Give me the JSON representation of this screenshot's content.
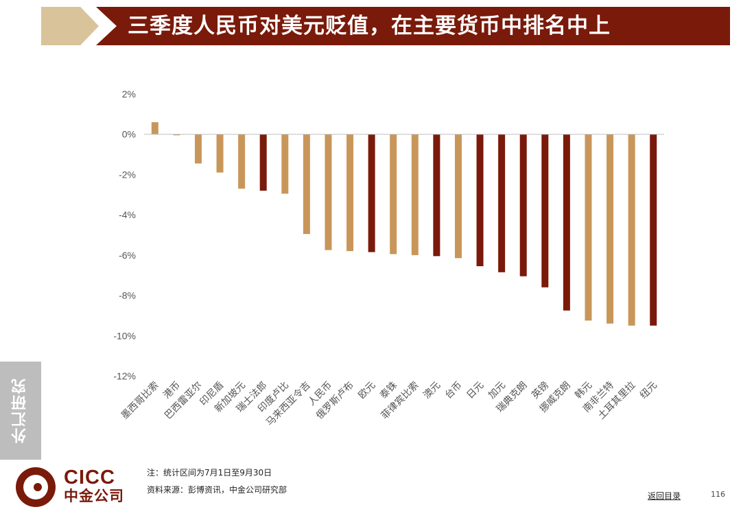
{
  "header": {
    "title": "三季度人民币对美元贬值，在主要货币中排名中上"
  },
  "side_tab": {
    "label": "外汇研究"
  },
  "colors": {
    "light": "#c9965a",
    "dark": "#7a1a0a"
  },
  "chart_data": {
    "type": "bar",
    "title": "",
    "xlabel": "",
    "ylabel": "",
    "ylim": [
      -12,
      2
    ],
    "yticks": [
      2,
      0,
      -2,
      -4,
      -6,
      -8,
      -10,
      -12
    ],
    "ytick_labels": [
      "2%",
      "0%",
      "-2%",
      "-4%",
      "-6%",
      "-8%",
      "-10%",
      "-12%"
    ],
    "grid": false,
    "categories": [
      "墨西哥比索",
      "港币",
      "巴西雷亚尔",
      "印尼盾",
      "新加坡元",
      "瑞士法郎",
      "印度卢比",
      "马来西亚令吉",
      "人民币",
      "俄罗斯卢布",
      "欧元",
      "泰铢",
      "菲律宾比索",
      "澳元",
      "台币",
      "日元",
      "加元",
      "瑞典克朗",
      "英镑",
      "挪威克朗",
      "韩元",
      "南非兰特",
      "土耳其里拉",
      "纽元"
    ],
    "values": [
      0.6,
      -0.05,
      -1.45,
      -1.9,
      -2.7,
      -2.8,
      -2.95,
      -4.95,
      -5.75,
      -5.8,
      -5.85,
      -5.95,
      -6.0,
      -6.05,
      -6.15,
      -6.55,
      -6.85,
      -7.05,
      -7.6,
      -8.75,
      -9.25,
      -9.4,
      -9.5,
      -9.5
    ],
    "bar_colors": [
      "light",
      "light",
      "light",
      "light",
      "light",
      "dark",
      "light",
      "light",
      "light",
      "light",
      "dark",
      "light",
      "light",
      "dark",
      "light",
      "dark",
      "dark",
      "dark",
      "dark",
      "dark",
      "light",
      "light",
      "light",
      "dark"
    ]
  },
  "footer": {
    "note": "注：统计区间为7月1日至9月30日",
    "source": "资料来源：彭博资讯，中金公司研究部",
    "back_link": "返回目录",
    "page_number": "116"
  },
  "logo": {
    "en": "CICC",
    "cn": "中金公司"
  }
}
